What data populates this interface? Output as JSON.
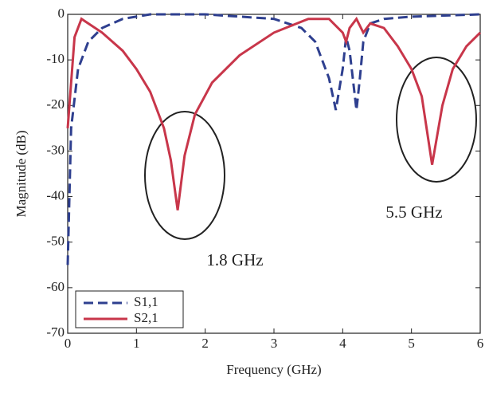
{
  "chart_data": {
    "type": "line",
    "xlabel": "Frequency (GHz)",
    "ylabel": "Magnitude (dB)",
    "xlim": [
      0,
      6
    ],
    "xticks": [
      0,
      1,
      2,
      3,
      4,
      5,
      6
    ],
    "ylim": [
      -70,
      0
    ],
    "yticks": [
      0,
      -10,
      -20,
      -30,
      -40,
      -50,
      -60,
      -70
    ],
    "legend": "lower left",
    "annotations": [
      "1.8 GHz",
      "5.5 GHz"
    ],
    "series": [
      {
        "name": "S1,1",
        "color": "#2e3f8f",
        "dash": true,
        "x": [
          0,
          0.05,
          0.15,
          0.3,
          0.5,
          0.8,
          1.2,
          2,
          3,
          3.4,
          3.6,
          3.8,
          3.9,
          4.0,
          4.05,
          4.1,
          4.2,
          4.25,
          4.3,
          4.4,
          4.6,
          5,
          6
        ],
        "values": [
          -55,
          -25,
          -12,
          -6,
          -3,
          -1,
          0,
          0,
          -1,
          -3,
          -6,
          -14,
          -21,
          -12,
          -5,
          -8,
          -21,
          -14,
          -6,
          -2,
          -1,
          -0.5,
          0
        ]
      },
      {
        "name": "S2,1",
        "color": "#c8364a",
        "dash": false,
        "x": [
          0,
          0.1,
          0.2,
          0.5,
          0.8,
          1.0,
          1.2,
          1.4,
          1.5,
          1.6,
          1.7,
          1.85,
          2.1,
          2.5,
          3.0,
          3.5,
          3.8,
          4.0,
          4.05,
          4.1,
          4.2,
          4.3,
          4.4,
          4.6,
          4.8,
          5.0,
          5.15,
          5.3,
          5.45,
          5.6,
          5.8,
          6.0
        ],
        "values": [
          -25,
          -5,
          -1,
          -4,
          -8,
          -12,
          -17,
          -25,
          -32,
          -43,
          -31,
          -22,
          -15,
          -9,
          -4,
          -1,
          -1,
          -4,
          -6,
          -3,
          -1,
          -4,
          -2,
          -3,
          -7,
          -12,
          -18,
          -33,
          -20,
          -12,
          -7,
          -4
        ]
      }
    ]
  }
}
